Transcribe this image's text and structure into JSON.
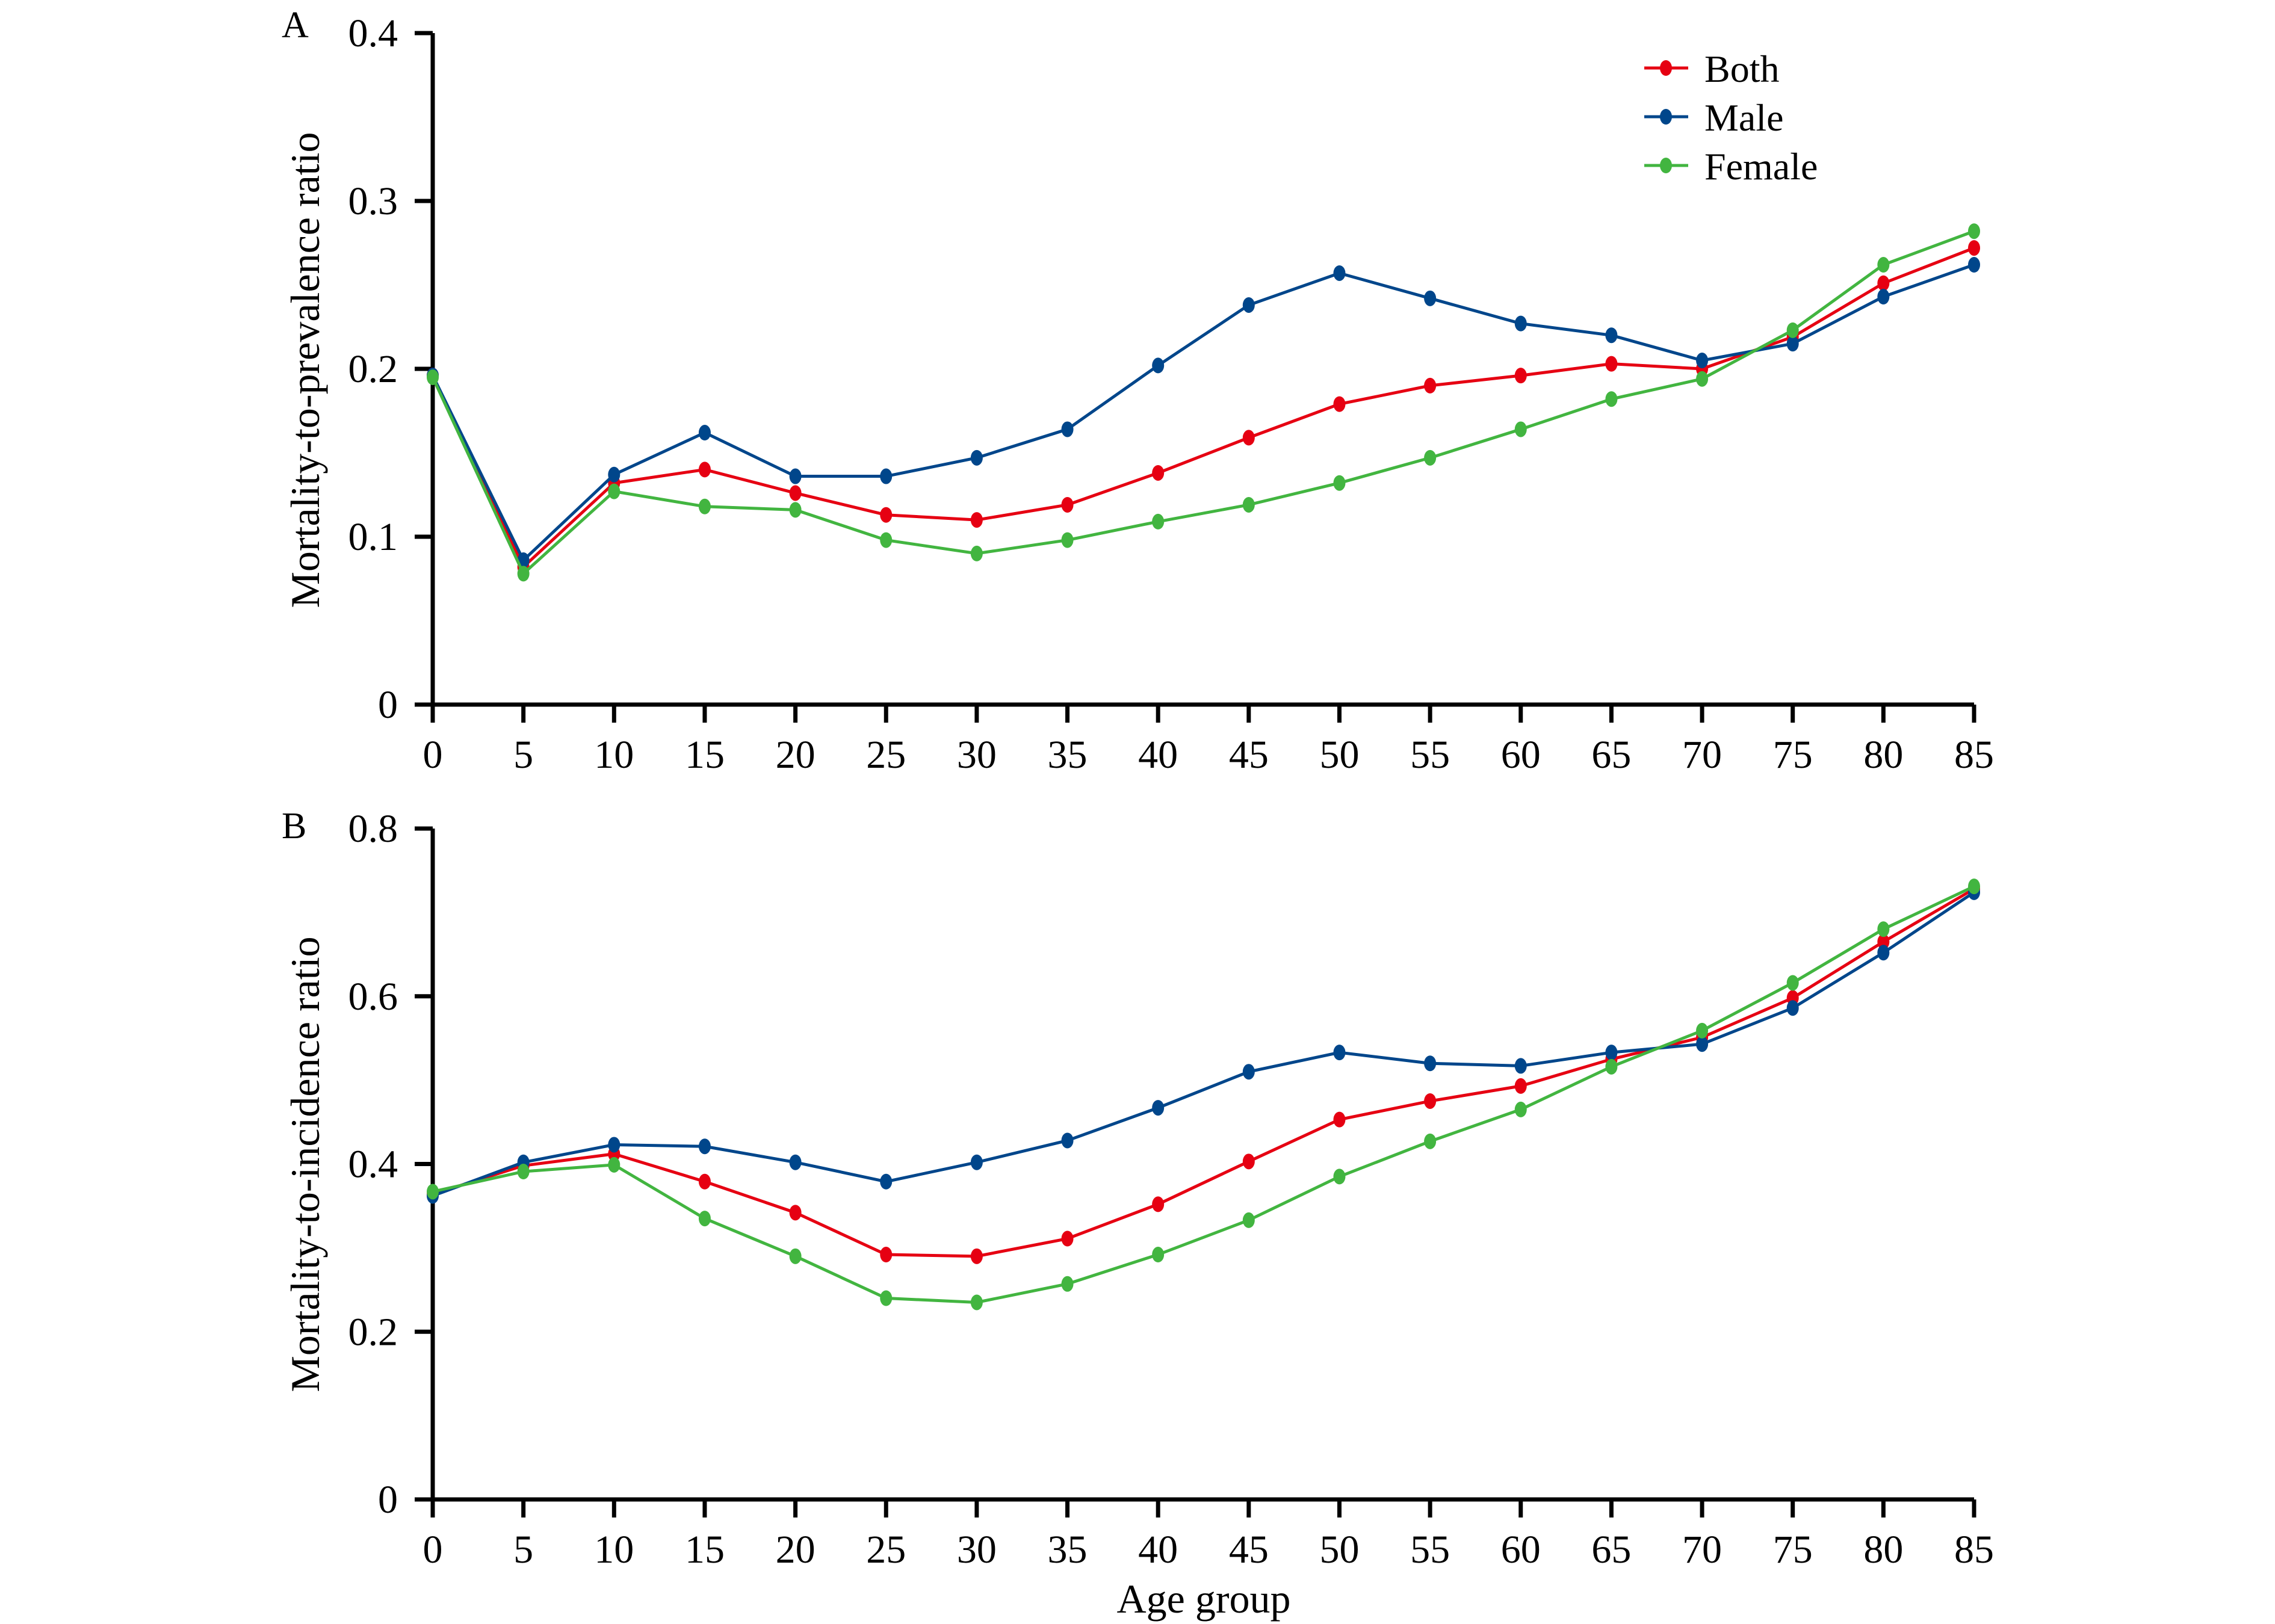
{
  "chart_data": [
    {
      "type": "line",
      "panel_label": "A",
      "title": "",
      "xlabel": "",
      "ylabel": "Mortality-to-prevalence ratio",
      "x": [
        0,
        5,
        10,
        15,
        20,
        25,
        30,
        35,
        40,
        45,
        50,
        55,
        60,
        65,
        70,
        75,
        80,
        85
      ],
      "xticks": [
        "0",
        "5",
        "10",
        "15",
        "20",
        "25",
        "30",
        "35",
        "40",
        "45",
        "50",
        "55",
        "60",
        "65",
        "70",
        "75",
        "80",
        "85"
      ],
      "yticks": [
        "0",
        "0.1",
        "0.2",
        "0.3",
        "0.4"
      ],
      "ytick_values": [
        0,
        0.1,
        0.2,
        0.3,
        0.4
      ],
      "xlim": [
        0,
        85
      ],
      "ylim": [
        0,
        0.4
      ],
      "grid": false,
      "legend": "top-right",
      "series": [
        {
          "name": "Both",
          "color": "#e60012",
          "values": [
            0.196,
            0.082,
            0.132,
            0.14,
            0.126,
            0.113,
            0.11,
            0.119,
            0.138,
            0.159,
            0.179,
            0.19,
            0.196,
            0.203,
            0.2,
            0.219,
            0.251,
            0.272
          ]
        },
        {
          "name": "Male",
          "color": "#00468b",
          "values": [
            0.196,
            0.086,
            0.137,
            0.162,
            0.136,
            0.136,
            0.147,
            0.164,
            0.202,
            0.238,
            0.257,
            0.242,
            0.227,
            0.22,
            0.205,
            0.215,
            0.243,
            0.262
          ]
        },
        {
          "name": "Female",
          "color": "#42b540",
          "values": [
            0.195,
            0.078,
            0.127,
            0.118,
            0.116,
            0.098,
            0.09,
            0.098,
            0.109,
            0.119,
            0.132,
            0.147,
            0.164,
            0.182,
            0.194,
            0.223,
            0.262,
            0.282
          ]
        }
      ]
    },
    {
      "type": "line",
      "panel_label": "B",
      "title": "",
      "xlabel": "Age group",
      "ylabel": "Mortality-to-incidence ratio",
      "x": [
        0,
        5,
        10,
        15,
        20,
        25,
        30,
        35,
        40,
        45,
        50,
        55,
        60,
        65,
        70,
        75,
        80,
        85
      ],
      "xticks": [
        "0",
        "5",
        "10",
        "15",
        "20",
        "25",
        "30",
        "35",
        "40",
        "45",
        "50",
        "55",
        "60",
        "65",
        "70",
        "75",
        "80",
        "85"
      ],
      "yticks": [
        "0",
        "0.2",
        "0.4",
        "0.6",
        "0.8"
      ],
      "ytick_values": [
        0,
        0.2,
        0.4,
        0.6,
        0.8
      ],
      "xlim": [
        0,
        85
      ],
      "ylim": [
        0,
        0.8
      ],
      "grid": false,
      "legend": "none",
      "series": [
        {
          "name": "Both",
          "color": "#e60012",
          "values": [
            0.364,
            0.398,
            0.412,
            0.379,
            0.342,
            0.292,
            0.29,
            0.311,
            0.352,
            0.403,
            0.453,
            0.475,
            0.493,
            0.525,
            0.551,
            0.598,
            0.665,
            0.728
          ]
        },
        {
          "name": "Male",
          "color": "#00468b",
          "values": [
            0.362,
            0.402,
            0.423,
            0.421,
            0.402,
            0.379,
            0.402,
            0.428,
            0.467,
            0.51,
            0.533,
            0.52,
            0.517,
            0.533,
            0.543,
            0.586,
            0.652,
            0.724
          ]
        },
        {
          "name": "Female",
          "color": "#42b540",
          "values": [
            0.367,
            0.391,
            0.399,
            0.335,
            0.29,
            0.24,
            0.235,
            0.257,
            0.292,
            0.333,
            0.385,
            0.427,
            0.465,
            0.516,
            0.559,
            0.616,
            0.68,
            0.731
          ]
        }
      ]
    }
  ],
  "legend": {
    "items": [
      {
        "label": "Both",
        "color": "#e60012"
      },
      {
        "label": "Male",
        "color": "#00468b"
      },
      {
        "label": "Female",
        "color": "#42b540"
      }
    ]
  }
}
